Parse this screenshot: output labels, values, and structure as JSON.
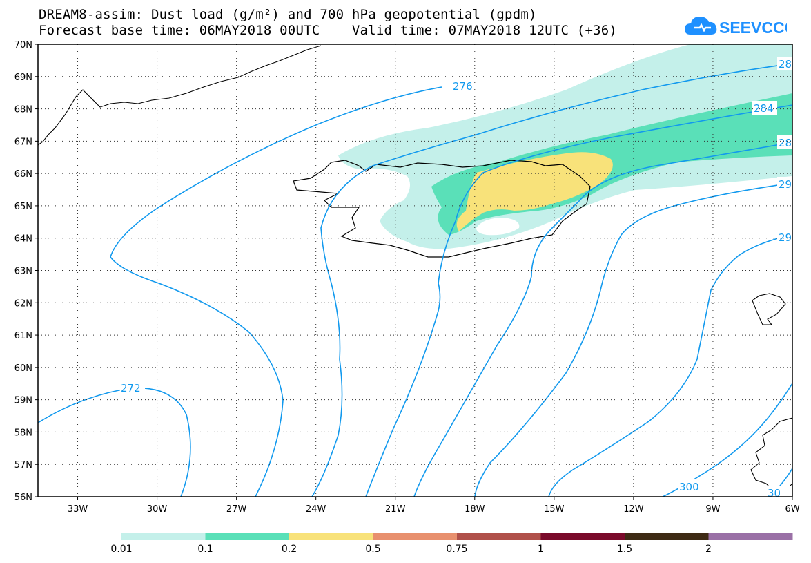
{
  "title": {
    "line1": "DREAM8-assim: Dust load (g/m²) and 700 hPa geopotential (gpdm)",
    "line2": "Forecast base time: 06MAY2018 00UTC    Valid time: 07MAY2018 12UTC (+36)"
  },
  "logo": {
    "text": "SEEVCCC",
    "icon": "cloud-icon",
    "color": "#1e90ff"
  },
  "map": {
    "projection": "lat-lon",
    "lon_range": [
      -34.5,
      -6
    ],
    "lat_range": [
      56,
      70
    ],
    "grid": true,
    "lat_ticks": [
      "70N",
      "69N",
      "68N",
      "67N",
      "66N",
      "65N",
      "64N",
      "63N",
      "62N",
      "61N",
      "60N",
      "59N",
      "58N",
      "57N",
      "56N"
    ],
    "lon_ticks": [
      "33W",
      "30W",
      "27W",
      "24W",
      "21W",
      "18W",
      "15W",
      "12W",
      "9W",
      "6W"
    ],
    "contour_color": "#1199ee",
    "contour_labels": [
      "276",
      "28",
      "284",
      "28",
      "29",
      "29",
      "272",
      "300",
      "30"
    ]
  },
  "legend": {
    "colors": [
      "#c4f0ea",
      "#5ae0b8",
      "#f8e27a",
      "#e8906e",
      "#b0504a",
      "#7a0a2a",
      "#3e2a14",
      "#9a70a6"
    ],
    "labels": [
      "0.01",
      "0.1",
      "0.2",
      "0.5",
      "0.75",
      "1",
      "1.5",
      "2"
    ]
  }
}
